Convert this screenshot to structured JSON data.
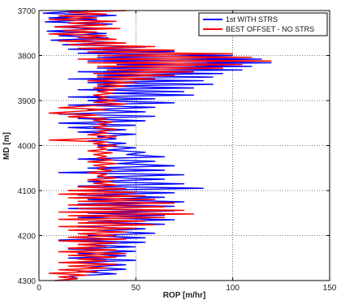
{
  "chart_data": {
    "type": "line",
    "orientation": "vertical-depth",
    "xlabel": "ROP [m/hr]",
    "ylabel": "MD [m]",
    "xlim": [
      0,
      150
    ],
    "ylim": [
      3700,
      4300
    ],
    "y_reversed": true,
    "x_ticks": [
      "0",
      "50",
      "100",
      "150"
    ],
    "y_ticks": [
      "3700",
      "3800",
      "3900",
      "4000",
      "4100",
      "4200",
      "4300"
    ],
    "grid": "dotted",
    "legend_position": "top-right",
    "series": [
      {
        "name": "1st WITH STRS",
        "color": "#0000ff",
        "points": [
          [
            3700,
            25
          ],
          [
            3706,
            2
          ],
          [
            3711,
            40
          ],
          [
            3716,
            5
          ],
          [
            3720,
            30
          ],
          [
            3725,
            3
          ],
          [
            3730,
            38
          ],
          [
            3736,
            8
          ],
          [
            3741,
            30
          ],
          [
            3746,
            4
          ],
          [
            3751,
            35
          ],
          [
            3756,
            10
          ],
          [
            3761,
            36
          ],
          [
            3766,
            6
          ],
          [
            3771,
            40
          ],
          [
            3776,
            12
          ],
          [
            3781,
            55
          ],
          [
            3786,
            15
          ],
          [
            3791,
            70
          ],
          [
            3795,
            20
          ],
          [
            3800,
            100
          ],
          [
            3804,
            30
          ],
          [
            3808,
            115
          ],
          [
            3812,
            25
          ],
          [
            3816,
            120
          ],
          [
            3820,
            40
          ],
          [
            3824,
            110
          ],
          [
            3828,
            30
          ],
          [
            3832,
            105
          ],
          [
            3836,
            20
          ],
          [
            3840,
            95
          ],
          [
            3844,
            30
          ],
          [
            3848,
            90
          ],
          [
            3852,
            15
          ],
          [
            3856,
            85
          ],
          [
            3860,
            25
          ],
          [
            3864,
            90
          ],
          [
            3868,
            30
          ],
          [
            3872,
            80
          ],
          [
            3876,
            20
          ],
          [
            3880,
            75
          ],
          [
            3884,
            35
          ],
          [
            3888,
            80
          ],
          [
            3892,
            15
          ],
          [
            3896,
            60
          ],
          [
            3900,
            25
          ],
          [
            3905,
            70
          ],
          [
            3910,
            15
          ],
          [
            3915,
            60
          ],
          [
            3920,
            25
          ],
          [
            3925,
            55
          ],
          [
            3930,
            10
          ],
          [
            3935,
            60
          ],
          [
            3940,
            20
          ],
          [
            3945,
            55
          ],
          [
            3950,
            10
          ],
          [
            3955,
            50
          ],
          [
            3960,
            15
          ],
          [
            3965,
            45
          ],
          [
            3970,
            20
          ],
          [
            3975,
            50
          ],
          [
            3980,
            30
          ],
          [
            3985,
            40
          ],
          [
            3990,
            25
          ],
          [
            3995,
            45
          ],
          [
            4000,
            30
          ],
          [
            4005,
            50
          ],
          [
            4010,
            35
          ],
          [
            4015,
            55
          ],
          [
            4020,
            45
          ],
          [
            4025,
            65
          ],
          [
            4030,
            20
          ],
          [
            4035,
            60
          ],
          [
            4040,
            40
          ],
          [
            4045,
            70
          ],
          [
            4050,
            25
          ],
          [
            4055,
            65
          ],
          [
            4060,
            10
          ],
          [
            4065,
            75
          ],
          [
            4070,
            30
          ],
          [
            4075,
            65
          ],
          [
            4080,
            25
          ],
          [
            4085,
            75
          ],
          [
            4090,
            20
          ],
          [
            4095,
            85
          ],
          [
            4100,
            15
          ],
          [
            4105,
            70
          ],
          [
            4110,
            20
          ],
          [
            4115,
            65
          ],
          [
            4120,
            25
          ],
          [
            4125,
            75
          ],
          [
            4130,
            20
          ],
          [
            4135,
            70
          ],
          [
            4140,
            15
          ],
          [
            4145,
            70
          ],
          [
            4150,
            25
          ],
          [
            4155,
            65
          ],
          [
            4160,
            20
          ],
          [
            4165,
            70
          ],
          [
            4170,
            25
          ],
          [
            4175,
            65
          ],
          [
            4180,
            20
          ],
          [
            4185,
            55
          ],
          [
            4190,
            30
          ],
          [
            4195,
            60
          ],
          [
            4200,
            25
          ],
          [
            4205,
            55
          ],
          [
            4210,
            10
          ],
          [
            4215,
            55
          ],
          [
            4220,
            20
          ],
          [
            4225,
            50
          ],
          [
            4230,
            15
          ],
          [
            4235,
            50
          ],
          [
            4240,
            20
          ],
          [
            4245,
            45
          ],
          [
            4250,
            15
          ],
          [
            4255,
            50
          ],
          [
            4260,
            20
          ],
          [
            4265,
            45
          ],
          [
            4270,
            25
          ],
          [
            4275,
            45
          ],
          [
            4280,
            20
          ],
          [
            4285,
            40
          ],
          [
            4290,
            15
          ],
          [
            4295,
            20
          ],
          [
            4300,
            10
          ]
        ]
      },
      {
        "name": "BEST OFFSET - NO STRS",
        "color": "#ff0000",
        "points": [
          [
            3700,
            45
          ],
          [
            3704,
            15
          ],
          [
            3708,
            35
          ],
          [
            3712,
            10
          ],
          [
            3716,
            30
          ],
          [
            3720,
            5
          ],
          [
            3724,
            40
          ],
          [
            3728,
            15
          ],
          [
            3732,
            35
          ],
          [
            3736,
            8
          ],
          [
            3740,
            42
          ],
          [
            3744,
            12
          ],
          [
            3748,
            30
          ],
          [
            3752,
            5
          ],
          [
            3756,
            35
          ],
          [
            3760,
            20
          ],
          [
            3764,
            40
          ],
          [
            3768,
            10
          ],
          [
            3772,
            45
          ],
          [
            3776,
            15
          ],
          [
            3780,
            60
          ],
          [
            3784,
            20
          ],
          [
            3788,
            70
          ],
          [
            3792,
            25
          ],
          [
            3796,
            100
          ],
          [
            3800,
            30
          ],
          [
            3804,
            110
          ],
          [
            3808,
            20
          ],
          [
            3812,
            120
          ],
          [
            3816,
            25
          ],
          [
            3820,
            105
          ],
          [
            3824,
            30
          ],
          [
            3828,
            95
          ],
          [
            3832,
            35
          ],
          [
            3836,
            80
          ],
          [
            3840,
            28
          ],
          [
            3844,
            70
          ],
          [
            3848,
            30
          ],
          [
            3852,
            60
          ],
          [
            3856,
            25
          ],
          [
            3860,
            50
          ],
          [
            3864,
            30
          ],
          [
            3868,
            45
          ],
          [
            3872,
            28
          ],
          [
            3876,
            40
          ],
          [
            3880,
            30
          ],
          [
            3884,
            38
          ],
          [
            3888,
            28
          ],
          [
            3892,
            35
          ],
          [
            3896,
            30
          ],
          [
            3900,
            40
          ],
          [
            3904,
            28
          ],
          [
            3908,
            45
          ],
          [
            3912,
            25
          ],
          [
            3916,
            10
          ],
          [
            3920,
            35
          ],
          [
            3924,
            20
          ],
          [
            3928,
            5
          ],
          [
            3932,
            30
          ],
          [
            3936,
            15
          ],
          [
            3940,
            35
          ],
          [
            3944,
            28
          ],
          [
            3948,
            38
          ],
          [
            3952,
            30
          ],
          [
            3956,
            35
          ],
          [
            3960,
            28
          ],
          [
            3964,
            40
          ],
          [
            3968,
            30
          ],
          [
            3972,
            35
          ],
          [
            3976,
            25
          ],
          [
            3980,
            40
          ],
          [
            3984,
            30
          ],
          [
            3988,
            5
          ],
          [
            3992,
            35
          ],
          [
            3996,
            28
          ],
          [
            4000,
            40
          ],
          [
            4004,
            30
          ],
          [
            4008,
            35
          ],
          [
            4012,
            25
          ],
          [
            4016,
            38
          ],
          [
            4020,
            28
          ],
          [
            4024,
            35
          ],
          [
            4028,
            30
          ],
          [
            4032,
            38
          ],
          [
            4036,
            25
          ],
          [
            4040,
            40
          ],
          [
            4044,
            28
          ],
          [
            4048,
            35
          ],
          [
            4052,
            30
          ],
          [
            4056,
            38
          ],
          [
            4060,
            25
          ],
          [
            4064,
            35
          ],
          [
            4068,
            30
          ],
          [
            4072,
            40
          ],
          [
            4076,
            25
          ],
          [
            4080,
            38
          ],
          [
            4084,
            28
          ],
          [
            4088,
            40
          ],
          [
            4092,
            20
          ],
          [
            4096,
            45
          ],
          [
            4100,
            15
          ],
          [
            4104,
            50
          ],
          [
            4108,
            10
          ],
          [
            4112,
            55
          ],
          [
            4116,
            15
          ],
          [
            4120,
            60
          ],
          [
            4124,
            20
          ],
          [
            4128,
            70
          ],
          [
            4132,
            15
          ],
          [
            4136,
            65
          ],
          [
            4140,
            20
          ],
          [
            4144,
            75
          ],
          [
            4148,
            10
          ],
          [
            4152,
            80
          ],
          [
            4156,
            15
          ],
          [
            4160,
            65
          ],
          [
            4164,
            10
          ],
          [
            4168,
            55
          ],
          [
            4172,
            20
          ],
          [
            4176,
            60
          ],
          [
            4180,
            10
          ],
          [
            4184,
            50
          ],
          [
            4188,
            15
          ],
          [
            4192,
            45
          ],
          [
            4196,
            20
          ],
          [
            4200,
            40
          ],
          [
            4204,
            15
          ],
          [
            4208,
            45
          ],
          [
            4212,
            10
          ],
          [
            4216,
            40
          ],
          [
            4220,
            20
          ],
          [
            4224,
            35
          ],
          [
            4228,
            15
          ],
          [
            4232,
            40
          ],
          [
            4236,
            10
          ],
          [
            4240,
            45
          ],
          [
            4244,
            15
          ],
          [
            4248,
            40
          ],
          [
            4252,
            20
          ],
          [
            4256,
            35
          ],
          [
            4260,
            10
          ],
          [
            4264,
            40
          ],
          [
            4268,
            15
          ],
          [
            4272,
            35
          ],
          [
            4276,
            10
          ],
          [
            4280,
            30
          ],
          [
            4284,
            5
          ],
          [
            4288,
            25
          ],
          [
            4292,
            10
          ],
          [
            4296,
            20
          ],
          [
            4300,
            8
          ]
        ]
      }
    ]
  }
}
